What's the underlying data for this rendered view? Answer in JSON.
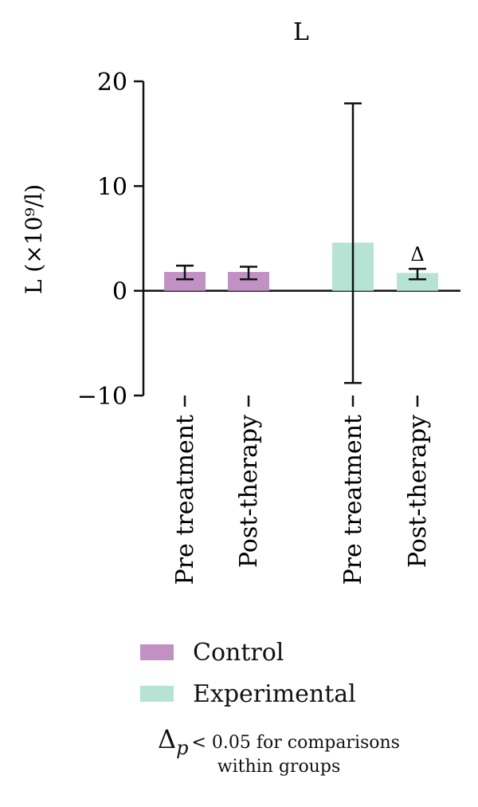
{
  "chart_data": {
    "type": "bar",
    "title": "L",
    "ylabel": "L (×10⁹/l)",
    "ylim": [
      -10,
      20
    ],
    "yticks": [
      -10,
      0,
      10,
      20
    ],
    "categories": [
      "Pre treatment",
      "Post-therapy",
      "Pre treatment",
      "Post-therapy"
    ],
    "groups": [
      "Control",
      "Control",
      "Experimental",
      "Experimental"
    ],
    "values": [
      1.8,
      1.8,
      4.6,
      1.7
    ],
    "error_low": [
      1.1,
      1.1,
      -8.8,
      1.1
    ],
    "error_high": [
      2.4,
      2.3,
      17.9,
      2.1
    ],
    "annotations": [
      "",
      "",
      "",
      "Δ"
    ],
    "colors": {
      "Control": "#c291c4",
      "Experimental": "#b6e3d3"
    },
    "legend": [
      {
        "name": "Control",
        "color": "#c291c4"
      },
      {
        "name": "Experimental",
        "color": "#b6e3d3"
      }
    ],
    "legend_position": "bottom"
  },
  "footnote": {
    "symbol": "Δ",
    "p_label": "p",
    "line1": "< 0.05 for comparisons",
    "line2": "within groups"
  }
}
